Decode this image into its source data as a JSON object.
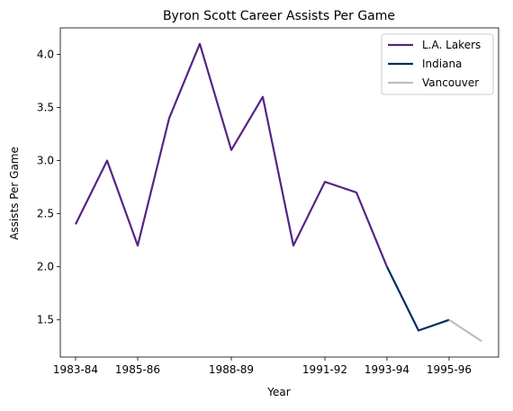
{
  "chart_data": {
    "type": "line",
    "title": "Byron Scott Career Assists Per Game",
    "xlabel": "Year",
    "ylabel": "Assists Per Game",
    "ylim": [
      1.15,
      4.25
    ],
    "x_ticks": [
      "1983-84",
      "1985-86",
      "1988-89",
      "1991-92",
      "1993-94",
      "1995-96"
    ],
    "y_ticks": [
      "1.5",
      "2.0",
      "2.5",
      "3.0",
      "3.5",
      "4.0"
    ],
    "grid": false,
    "legend_position": "top-right",
    "series": [
      {
        "name": "L.A. Lakers",
        "color": "#552583",
        "x": [
          "1983-84",
          "1984-85",
          "1985-86",
          "1986-87",
          "1987-88",
          "1988-89",
          "1989-90",
          "1990-91",
          "1991-92",
          "1992-93",
          "1993-94"
        ],
        "values": [
          2.4,
          3.0,
          2.2,
          3.4,
          4.1,
          3.1,
          3.6,
          2.2,
          2.8,
          2.7,
          2.0
        ]
      },
      {
        "name": "Indiana",
        "color": "#002D62",
        "x": [
          "1993-94",
          "1994-95",
          "1995-96"
        ],
        "values": [
          2.0,
          1.4,
          1.5
        ]
      },
      {
        "name": "Vancouver",
        "color": "#BEBEBE",
        "x": [
          "1995-96",
          "1996-97"
        ],
        "values": [
          1.5,
          1.3
        ]
      }
    ]
  }
}
